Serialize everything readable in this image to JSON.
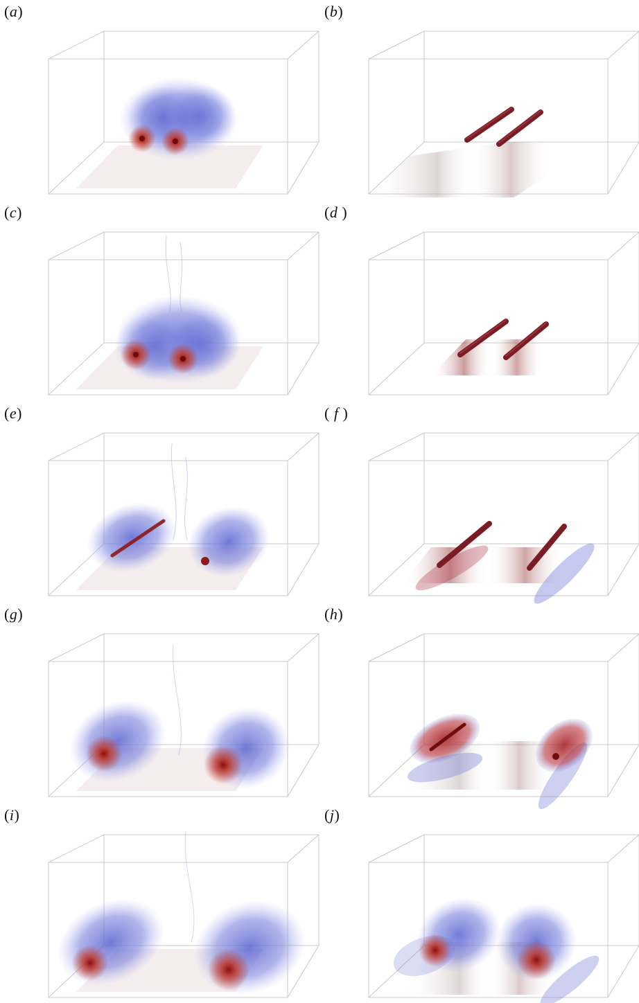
{
  "figure": {
    "panels": [
      {
        "id": "a",
        "label_open": "(",
        "letter": "a",
        "label_close": ")",
        "style": "blob",
        "vortex_separation": "close"
      },
      {
        "id": "b",
        "label_open": "(",
        "letter": "b",
        "label_close": ")",
        "style": "tubes",
        "vortex_separation": "close"
      },
      {
        "id": "c",
        "label_open": "(",
        "letter": "c",
        "label_close": ")",
        "style": "blob",
        "vortex_separation": "close"
      },
      {
        "id": "d",
        "label_open": "(",
        "letter": "d",
        "label_close": " )",
        "style": "tubes",
        "vortex_separation": "medium"
      },
      {
        "id": "e",
        "label_open": "(",
        "letter": "e",
        "label_close": ")",
        "style": "blob",
        "vortex_separation": "medium"
      },
      {
        "id": "f",
        "label_open": "( ",
        "letter": "f",
        "label_close": " )",
        "style": "tubes",
        "vortex_separation": "wide"
      },
      {
        "id": "g",
        "label_open": "(",
        "letter": "g",
        "label_close": ")",
        "style": "blob",
        "vortex_separation": "wide"
      },
      {
        "id": "h",
        "label_open": "(",
        "letter": "h",
        "label_close": ")",
        "style": "rings",
        "vortex_separation": "wide"
      },
      {
        "id": "i",
        "label_open": "(",
        "letter": "i",
        "label_close": ")",
        "style": "blob",
        "vortex_separation": "widest"
      },
      {
        "id": "j",
        "label_open": "(",
        "letter": "j",
        "label_close": ")",
        "style": "blob",
        "vortex_separation": "wide"
      }
    ],
    "colors": {
      "box_edges": "#c8c8c8",
      "vortex_core": "#8b1a1a",
      "vortex_tube": "#7a1c24",
      "turbulence_blue": "#6f78d8",
      "turbulence_red": "#c0392b",
      "ground_shade": "#9a6a6a"
    }
  }
}
